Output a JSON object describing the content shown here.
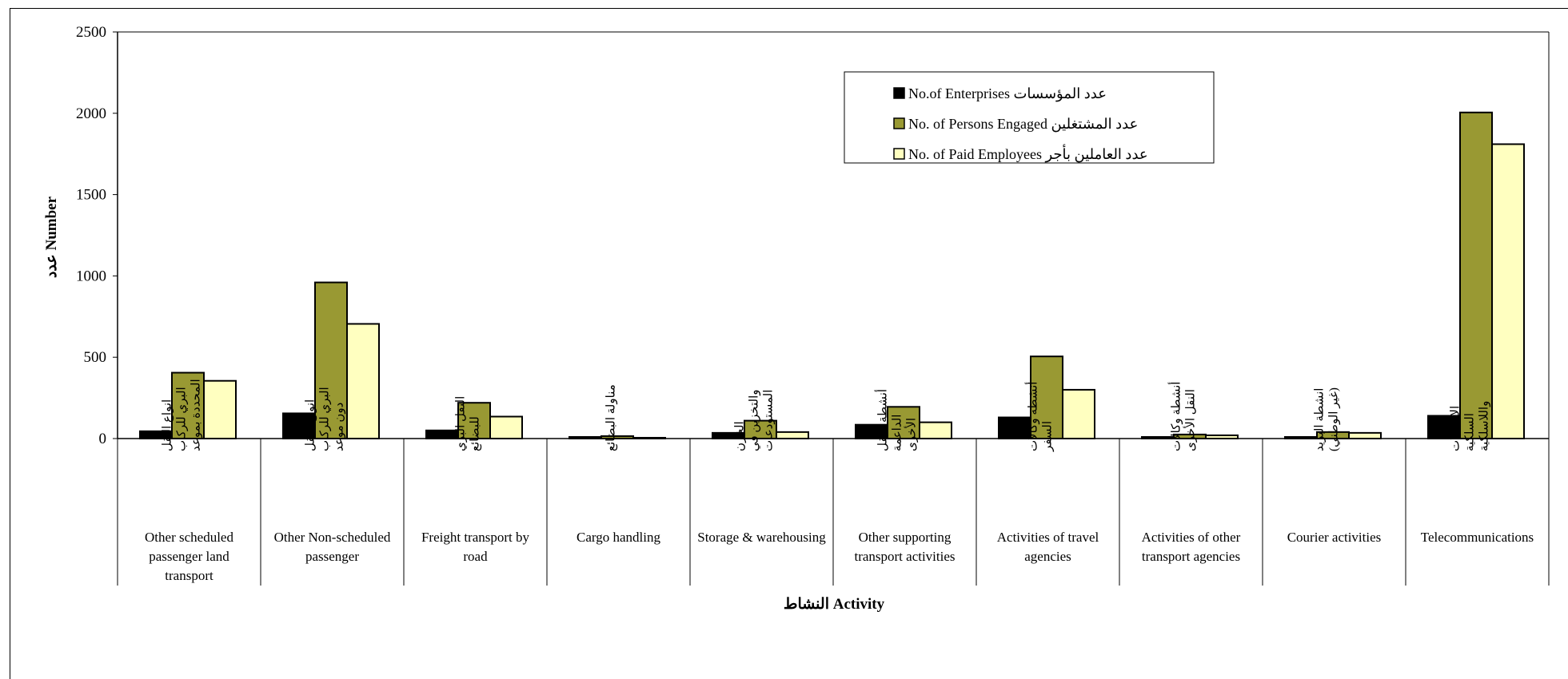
{
  "chart_data": {
    "type": "bar",
    "title": "",
    "xlabel": "النشاط Activity",
    "ylabel": "عدد Number",
    "ylim": [
      0,
      2500
    ],
    "yticks": [
      0,
      500,
      1000,
      1500,
      2000,
      2500
    ],
    "grid": false,
    "legend_position": "top-right",
    "categories": [
      {
        "en": [
          "Other scheduled",
          "passenger land",
          "transport"
        ],
        "ar": [
          "انواع النقل",
          "البري للركاب",
          "المحددة بموعد"
        ]
      },
      {
        "en": [
          "Other Non-scheduled",
          "passenger"
        ],
        "ar": [
          "انواع النقل",
          "البري للركاب",
          "دون موعد"
        ]
      },
      {
        "en": [
          "Freight transport by",
          "road"
        ],
        "ar": [
          "النقل البري",
          "للبضائع"
        ]
      },
      {
        "en": [
          "Cargo handling"
        ],
        "ar": [
          "مناولة البضائع"
        ]
      },
      {
        "en": [
          "Storage & warehousing"
        ],
        "ar": [
          "الخزن",
          "والتخزين في",
          "المستودعات"
        ]
      },
      {
        "en": [
          "Other supporting",
          "transport activities"
        ],
        "ar": [
          "أنشطة النقل",
          "الداعمة",
          "الأخرى"
        ]
      },
      {
        "en": [
          "Activities of travel",
          "agencies"
        ],
        "ar": [
          "أنشطة وكالات",
          "السفر"
        ]
      },
      {
        "en": [
          "Activities of other",
          "transport agencies"
        ],
        "ar": [
          "أنشطة وكالات",
          "النقل الأخرى"
        ]
      },
      {
        "en": [
          "Courier activities"
        ],
        "ar": [
          "انشطة البريد",
          "(غير الوطني)"
        ]
      },
      {
        "en": [
          "Telecommunications"
        ],
        "ar": [
          "الاتصالات",
          "السلكية",
          "واللاسلكية"
        ]
      }
    ],
    "series": [
      {
        "name": "No.of Enterprises عدد المؤسسات",
        "color": "#000000",
        "values": [
          45,
          155,
          50,
          10,
          35,
          85,
          130,
          10,
          10,
          140
        ]
      },
      {
        "name": "No. of Persons Engaged عدد المشتغلين",
        "color": "#999933",
        "values": [
          405,
          960,
          220,
          15,
          110,
          195,
          505,
          25,
          40,
          2005
        ]
      },
      {
        "name": "No. of Paid Employees عدد العاملين بأجر",
        "color": "#FFFFC0",
        "values": [
          355,
          705,
          135,
          5,
          40,
          100,
          300,
          20,
          35,
          1810
        ]
      }
    ]
  }
}
